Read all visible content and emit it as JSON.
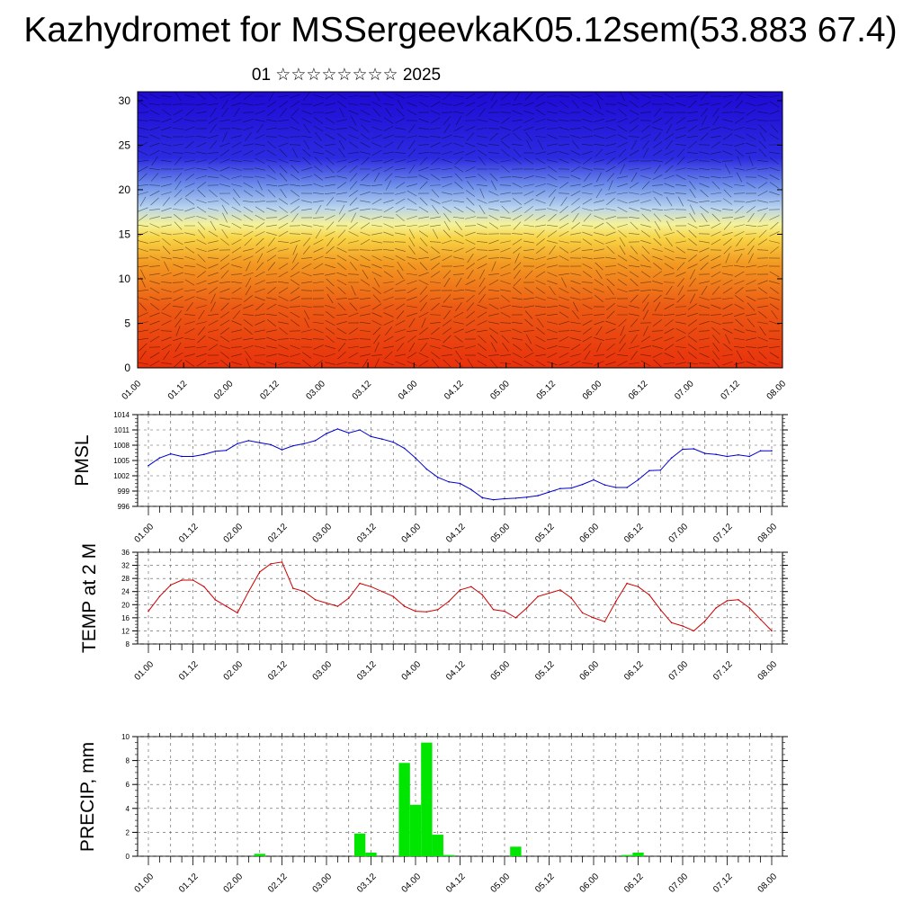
{
  "title": "Kazhydromet for MSSergeevkaK05.12sem(53.883 67.4)",
  "subtitle": "01 ☆☆☆☆☆☆☆☆ 2025",
  "chart_data": [
    {
      "type": "heatmap",
      "name": "vertical cross-section",
      "x_tick_labels": [
        "01.00",
        "01.12",
        "02.00",
        "02.12",
        "03.00",
        "03.12",
        "04.00",
        "04.12",
        "05.00",
        "05.12",
        "06.00",
        "06.12",
        "07.00",
        "07.12",
        "08.00"
      ],
      "y_ticks": [
        "0",
        "5",
        "10",
        "15",
        "20",
        "25",
        "30"
      ],
      "ylim": [
        0,
        31
      ],
      "colormap": [
        "#1a06d4",
        "#3b55e8",
        "#9fc4ef",
        "#f4f07a",
        "#f7c53a",
        "#f08a1c",
        "#e8360f"
      ],
      "level_bands": [
        {
          "y_from": 0,
          "y_to": 7,
          "color": "#e63a10"
        },
        {
          "y_from": 7,
          "y_to": 12,
          "color": "#f0861c"
        },
        {
          "y_from": 12,
          "y_to": 15.5,
          "color": "#f7c93e"
        },
        {
          "y_from": 15.5,
          "y_to": 19,
          "color": "#b8d4ef"
        },
        {
          "y_from": 19,
          "y_to": 23,
          "color": "#5a7ee8"
        },
        {
          "y_from": 23,
          "y_to": 31,
          "color": "#1f10d6"
        }
      ]
    },
    {
      "type": "line",
      "ylabel": "PMSL",
      "ylim": [
        996,
        1014
      ],
      "y_ticks": [
        "996",
        "999",
        "1002",
        "1005",
        "1008",
        "1011",
        "1014"
      ],
      "x_tick_labels": [
        "01.00",
        "01.12",
        "02.00",
        "02.12",
        "03.00",
        "03.12",
        "04.00",
        "04.12",
        "05.00",
        "05.12",
        "06.00",
        "06.12",
        "07.00",
        "07.12",
        "08.00"
      ],
      "color": "#0000cc",
      "x": [
        0,
        3,
        6,
        9,
        12,
        15,
        18,
        21,
        24,
        27,
        30,
        33,
        36,
        39,
        42,
        45,
        48,
        51,
        54,
        57,
        60,
        63,
        66,
        69,
        72,
        75,
        78,
        81,
        84,
        87,
        90,
        93,
        96,
        99,
        102,
        105,
        108,
        111,
        114,
        117,
        120,
        123,
        126,
        129,
        132,
        135,
        138,
        141,
        144,
        147,
        150,
        153,
        156,
        159,
        162,
        165,
        168
      ],
      "values": [
        1004,
        1005.5,
        1006.3,
        1005.8,
        1005.8,
        1006.2,
        1006.8,
        1007,
        1008.3,
        1008.9,
        1008.5,
        1008.1,
        1007.1,
        1007.9,
        1008.3,
        1008.9,
        1010.3,
        1011.2,
        1010.4,
        1011,
        1009.7,
        1009.2,
        1008.6,
        1007.4,
        1005.5,
        1003.3,
        1001.7,
        1000.8,
        1000.5,
        999.3,
        997.7,
        997.3,
        997.5,
        997.6,
        997.8,
        998.1,
        998.8,
        999.5,
        999.6,
        1000.3,
        1001.2,
        1000.2,
        999.7,
        999.7,
        1001.2,
        1003,
        1003.1,
        1005.5,
        1007.2,
        1007.3,
        1006.4,
        1006.2,
        1005.8,
        1006.1,
        1005.8,
        1006.9,
        1006.9
      ]
    },
    {
      "type": "line",
      "ylabel": "TEMP at 2 M",
      "ylim": [
        8,
        36
      ],
      "y_ticks": [
        "8",
        "12",
        "16",
        "20",
        "24",
        "28",
        "32",
        "36"
      ],
      "x_tick_labels": [
        "01.00",
        "01.12",
        "02.00",
        "02.12",
        "03.00",
        "03.12",
        "04.00",
        "04.12",
        "05.00",
        "05.12",
        "06.00",
        "06.12",
        "07.00",
        "07.12",
        "08.00"
      ],
      "color": "#cc0000",
      "x": [
        0,
        3,
        6,
        9,
        12,
        15,
        18,
        21,
        24,
        27,
        30,
        33,
        36,
        39,
        42,
        45,
        48,
        51,
        54,
        57,
        60,
        63,
        66,
        69,
        72,
        75,
        78,
        81,
        84,
        87,
        90,
        93,
        96,
        99,
        102,
        105,
        108,
        111,
        114,
        117,
        120,
        123,
        126,
        129,
        132,
        135,
        138,
        141,
        144,
        147,
        150,
        153,
        156,
        159,
        162,
        165,
        168
      ],
      "values": [
        18,
        22.5,
        26,
        27.5,
        27.5,
        25.5,
        21.5,
        19.5,
        17.5,
        24,
        30,
        32.5,
        33,
        25,
        24,
        21.5,
        20.5,
        19.5,
        22,
        26.5,
        25.5,
        24,
        22.5,
        19.5,
        18,
        17.8,
        18.5,
        21,
        24.5,
        25.5,
        23,
        18.5,
        18,
        16,
        19,
        22.5,
        23.5,
        24.5,
        22,
        17.5,
        16,
        14.8,
        21,
        26.5,
        25.5,
        23,
        18.5,
        14.5,
        13.5,
        12,
        15,
        19,
        21.2,
        21.5,
        19,
        15.5,
        12
      ]
    },
    {
      "type": "bar",
      "ylabel": "PRECIP, mm",
      "ylim": [
        0,
        10
      ],
      "y_ticks": [
        "0",
        "2",
        "4",
        "6",
        "8",
        "10"
      ],
      "x_tick_labels": [
        "01.00",
        "01.12",
        "02.00",
        "02.12",
        "03.00",
        "03.12",
        "04.00",
        "04.12",
        "05.00",
        "05.12",
        "06.00",
        "06.12",
        "07.00",
        "07.12",
        "08.00"
      ],
      "color": "#00e600",
      "x": [
        30,
        57,
        60,
        69,
        72,
        75,
        78,
        81,
        99,
        129,
        132
      ],
      "values": [
        0.2,
        1.9,
        0.3,
        7.8,
        4.3,
        9.5,
        1.8,
        0.1,
        0.8,
        0.1,
        0.3
      ]
    }
  ]
}
